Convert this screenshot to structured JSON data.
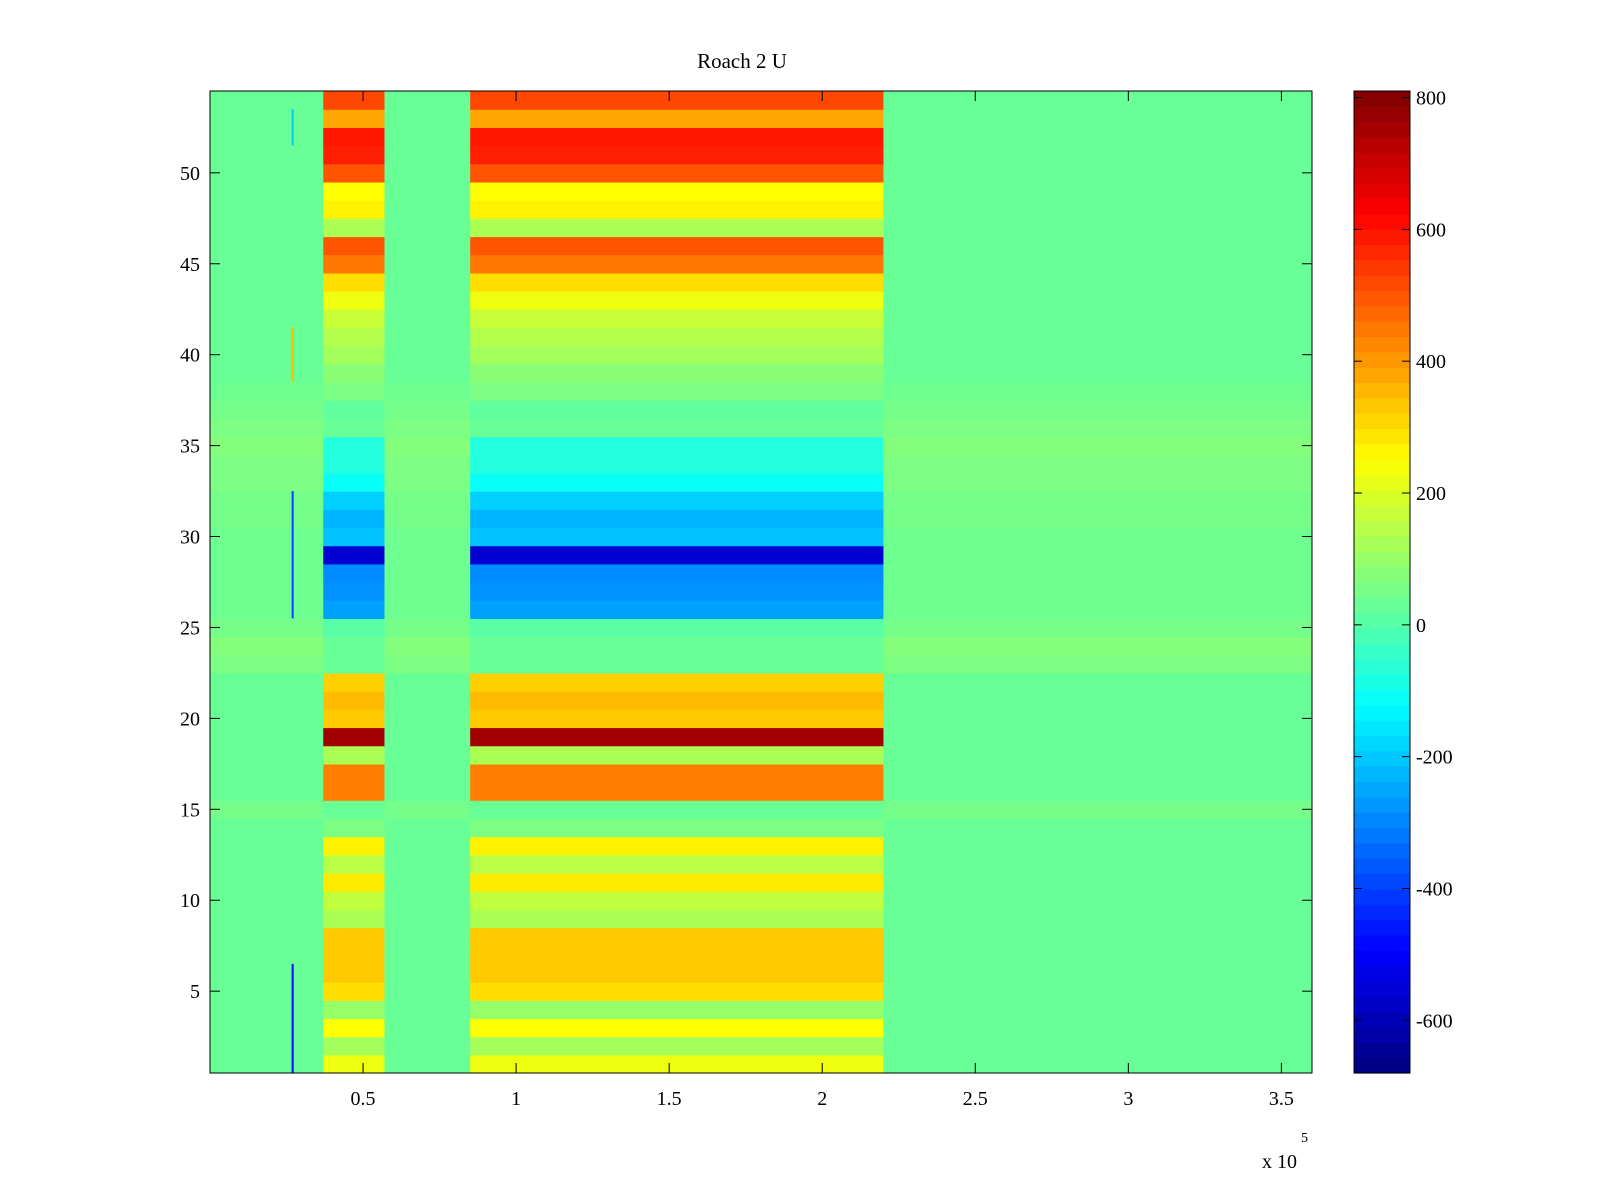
{
  "chart_data": {
    "type": "heatmap",
    "title": "Roach 2 U",
    "xlabel": "",
    "ylabel": "",
    "x_range": [
      0,
      360000
    ],
    "y_range": [
      0.5,
      54.5
    ],
    "x_ticks": [
      50000,
      100000,
      150000,
      200000,
      250000,
      300000,
      350000
    ],
    "x_tick_labels": [
      "0.5",
      "1",
      "1.5",
      "2",
      "2.5",
      "3",
      "3.5"
    ],
    "x_exponent": {
      "base": "x 10",
      "power": "5"
    },
    "y_ticks": [
      5,
      10,
      15,
      20,
      25,
      30,
      35,
      40,
      45,
      50
    ],
    "y_tick_labels": [
      "5",
      "10",
      "15",
      "20",
      "25",
      "30",
      "35",
      "40",
      "45",
      "50"
    ],
    "colorbar": {
      "range": [
        -680,
        810
      ],
      "ticks": [
        -600,
        -400,
        -200,
        0,
        200,
        400,
        600,
        800
      ],
      "tick_labels": [
        "-600",
        "-400",
        "-200",
        "0",
        "200",
        "400",
        "600",
        "800"
      ],
      "colormap": "jet"
    },
    "active_segments": [
      {
        "x_start": 37000,
        "x_end": 57000
      },
      {
        "x_start": 85000,
        "x_end": 220000
      }
    ],
    "background_value": 30,
    "row_values_active": [
      230,
      120,
      250,
      100,
      300,
      330,
      330,
      330,
      130,
      160,
      280,
      150,
      270,
      60,
      30,
      440,
      440,
      130,
      760,
      330,
      350,
      320,
      30,
      30,
      10,
      -260,
      -280,
      -290,
      -560,
      -210,
      -230,
      -190,
      -110,
      -70,
      -70,
      30,
      20,
      60,
      80,
      120,
      140,
      170,
      230,
      300,
      450,
      500,
      130,
      270,
      250,
      500,
      580,
      590,
      380,
      520
    ],
    "row_values_background": [
      30,
      30,
      30,
      30,
      30,
      30,
      30,
      30,
      30,
      30,
      30,
      30,
      30,
      30,
      50,
      30,
      30,
      30,
      30,
      30,
      30,
      30,
      60,
      70,
      50,
      40,
      40,
      40,
      40,
      40,
      50,
      50,
      60,
      60,
      70,
      60,
      50,
      40,
      30,
      30,
      30,
      30,
      30,
      30,
      30,
      30,
      30,
      30,
      30,
      30,
      30,
      30,
      30,
      30
    ],
    "spikes": [
      {
        "x": 27000,
        "y_start": 0.5,
        "y_end": 6.5,
        "value": -480
      },
      {
        "x": 27000,
        "y_start": 25.5,
        "y_end": 32.5,
        "value": -400
      },
      {
        "x": 27000,
        "y_start": 38.5,
        "y_end": 41.5,
        "value": 350
      },
      {
        "x": 27000,
        "y_start": 51.5,
        "y_end": 53.5,
        "value": -200
      }
    ]
  }
}
